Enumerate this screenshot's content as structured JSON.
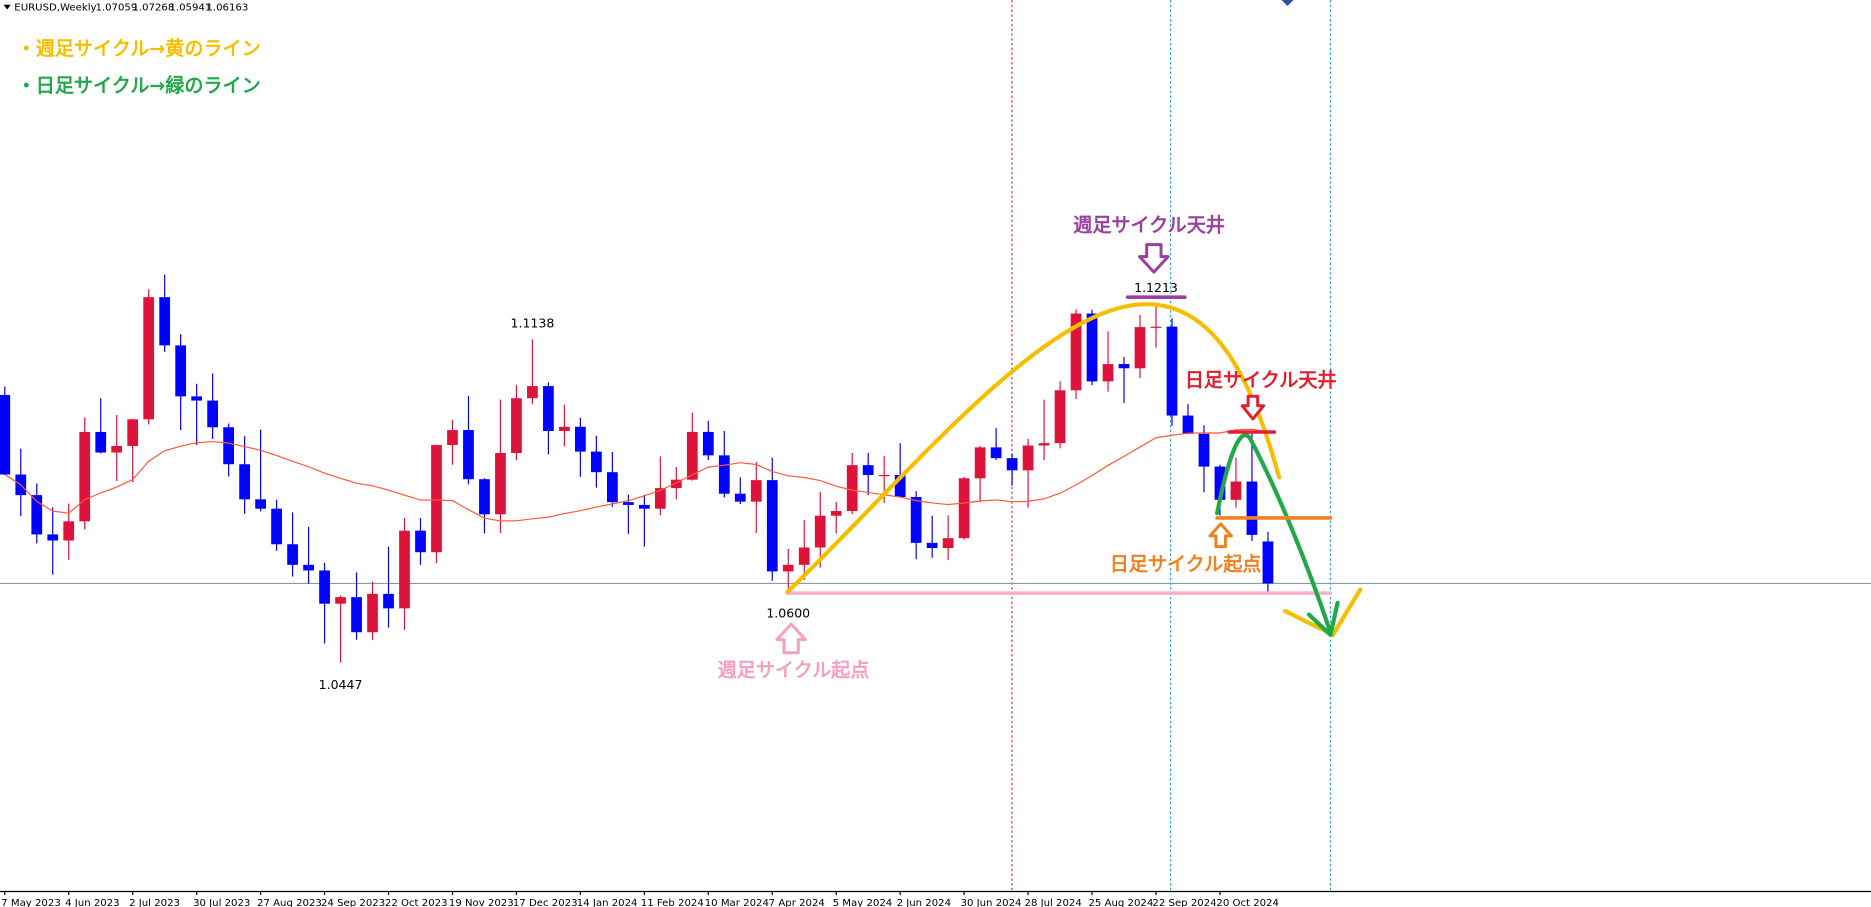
{
  "chart_data": {
    "type": "candlestick",
    "title": "EURUSD,Weekly",
    "categories": [
      "7 May 2023",
      null,
      null,
      null,
      "4 Jun 2023",
      null,
      null,
      null,
      "2 Jul 2023",
      null,
      null,
      null,
      "30 Jul 2023",
      null,
      null,
      null,
      "27 Aug 2023",
      null,
      null,
      null,
      "24 Sep 2023",
      null,
      null,
      null,
      "22 Oct 2023",
      null,
      null,
      null,
      "19 Nov 2023",
      null,
      null,
      null,
      "17 Dec 2023",
      null,
      null,
      null,
      "14 Jan 2024",
      null,
      null,
      null,
      "11 Feb 2024",
      null,
      null,
      null,
      "10 Mar 2024",
      null,
      null,
      null,
      "7 Apr 2024",
      null,
      null,
      null,
      "5 May 2024",
      null,
      null,
      null,
      "2 Jun 2024",
      null,
      null,
      null,
      "30 Jun 2024",
      null,
      null,
      null,
      "28 Jul 2024",
      null,
      null,
      null,
      "25 Aug 2024",
      null,
      null,
      null,
      "22 Sep 2024",
      null,
      null,
      null,
      "20 Oct 2024",
      null,
      null,
      null
    ],
    "open": [
      1.1019,
      1.0849,
      1.0805,
      1.0721,
      1.0708,
      1.0749,
      1.094,
      1.0896,
      1.091,
      1.0967,
      1.1228,
      1.1125,
      1.1016,
      1.1007,
      1.095,
      1.0871,
      1.0796,
      1.0776,
      1.07,
      1.0656,
      1.0644,
      1.0573,
      1.0587,
      1.0512,
      1.0594,
      1.0563,
      1.0729,
      1.0683,
      1.0912,
      1.0944,
      1.0839,
      1.0764,
      1.0895,
      1.1012,
      1.1038,
      1.0942,
      1.0951,
      1.0898,
      1.0854,
      1.079,
      1.0784,
      1.0776,
      1.082,
      1.0838,
      1.094,
      1.089,
      1.0808,
      1.0791,
      1.0837,
      1.0642,
      1.0656,
      1.0693,
      1.0761,
      1.0771,
      1.0869,
      1.0848,
      1.0848,
      1.0801,
      1.0703,
      1.0692,
      1.0713,
      1.0841,
      1.0907,
      1.0884,
      1.0858,
      1.0911,
      1.0916,
      1.1029,
      1.1193,
      1.1048,
      1.1085,
      1.1076,
      1.1164,
      1.1165,
      1.0975,
      1.0936,
      1.0866,
      1.0795,
      1.0834,
      1.07059
    ],
    "high": [
      1.1037,
      1.0904,
      1.083,
      1.0779,
      1.0787,
      1.0971,
      1.1012,
      1.0976,
      1.0968,
      1.1245,
      1.1276,
      1.1149,
      1.1043,
      1.1065,
      1.0958,
      1.0931,
      1.0945,
      1.0795,
      1.0768,
      1.0737,
      1.066,
      1.059,
      1.064,
      1.062,
      1.0695,
      1.0756,
      1.0756,
      1.0913,
      1.0966,
      1.1017,
      1.0841,
      1.1009,
      1.104,
      1.1138,
      1.1046,
      1.0998,
      1.097,
      1.0932,
      1.0897,
      1.0806,
      1.0806,
      1.0888,
      1.0865,
      1.0981,
      1.0964,
      1.0942,
      1.0843,
      1.0876,
      1.0885,
      1.069,
      1.0752,
      1.0812,
      1.0791,
      1.0895,
      1.0895,
      1.0889,
      1.0916,
      1.0813,
      1.0761,
      1.0762,
      1.0844,
      1.091,
      1.0948,
      1.0894,
      1.0925,
      1.1009,
      1.1048,
      1.1202,
      1.1201,
      1.1155,
      1.11,
      1.119,
      1.1213,
      1.1183,
      1.1,
      1.0954,
      1.087,
      1.0885,
      1.0937,
      1.07268
    ],
    "low": [
      1.0848,
      1.076,
      1.0702,
      1.0635,
      1.0667,
      1.0732,
      1.0894,
      1.0835,
      1.0833,
      1.0956,
      1.1111,
      1.0944,
      1.0912,
      1.0925,
      1.0845,
      1.0765,
      1.077,
      1.0686,
      1.0631,
      1.0616,
      1.0488,
      1.0447,
      1.0496,
      1.0495,
      1.0522,
      1.0517,
      1.0656,
      1.066,
      1.087,
      1.0828,
      1.0723,
      1.0724,
      1.088,
      1.1,
      1.0892,
      1.0909,
      1.0844,
      1.0821,
      1.078,
      1.0722,
      1.0695,
      1.0762,
      1.0796,
      1.0836,
      1.088,
      1.08,
      1.0786,
      1.0724,
      1.0622,
      1.06,
      1.0624,
      1.065,
      1.0723,
      1.0764,
      1.0805,
      1.0788,
      1.08,
      1.0668,
      1.0671,
      1.0666,
      1.071,
      1.079,
      1.088,
      1.0825,
      1.0778,
      1.088,
      1.0905,
      1.101,
      1.104,
      1.1026,
      1.1002,
      1.1055,
      1.112,
      1.0953,
      1.0935,
      1.0811,
      1.0761,
      1.0778,
      1.0707,
      1.05941
    ],
    "close": [
      1.0849,
      1.0805,
      1.0721,
      1.0708,
      1.0749,
      1.094,
      1.0896,
      1.091,
      1.0967,
      1.1228,
      1.1125,
      1.1016,
      1.1007,
      1.095,
      1.0871,
      1.0796,
      1.0776,
      1.07,
      1.0656,
      1.0644,
      1.0573,
      1.0587,
      1.0512,
      1.0594,
      1.0563,
      1.0729,
      1.0683,
      1.0912,
      1.0944,
      1.0839,
      1.0764,
      1.0895,
      1.1012,
      1.1038,
      1.0942,
      1.0951,
      1.0898,
      1.0854,
      1.079,
      1.0784,
      1.0776,
      1.082,
      1.0838,
      1.094,
      1.089,
      1.0808,
      1.0791,
      1.0837,
      1.0642,
      1.0656,
      1.0693,
      1.0761,
      1.0771,
      1.0869,
      1.0848,
      1.0848,
      1.0801,
      1.0703,
      1.0692,
      1.0713,
      1.0841,
      1.0907,
      1.0884,
      1.0858,
      1.0911,
      1.0916,
      1.1029,
      1.1193,
      1.1048,
      1.1085,
      1.1076,
      1.1164,
      1.1165,
      1.0975,
      1.0936,
      1.0866,
      1.0795,
      1.0834,
      1.072,
      1.06163
    ],
    "up_color": "#dc143c",
    "down_color": "#0000ff",
    "ma_color": "#ff5a36",
    "ylim": [
      0.9958,
      1.1863
    ],
    "price_labels": [
      1.1138,
      1.1213,
      {
        "value": 1.06,
        "label": "1.0600"
      },
      1.0447
    ],
    "annotations": [
      {
        "text": "・週足サイクル→黄のライン",
        "color": "#f5bf00"
      },
      {
        "text": "・日足サイクル→緑のライン",
        "color": "#22a84a"
      },
      {
        "text": "週足サイクル天井",
        "color": "#9b3fa0"
      },
      {
        "text": "日足サイクル天井",
        "color": "#e02030"
      },
      {
        "text": "日足サイクル起点",
        "color": "#f08020"
      },
      {
        "text": "週足サイクル起点",
        "color": "#f4a0c0"
      }
    ]
  }
}
